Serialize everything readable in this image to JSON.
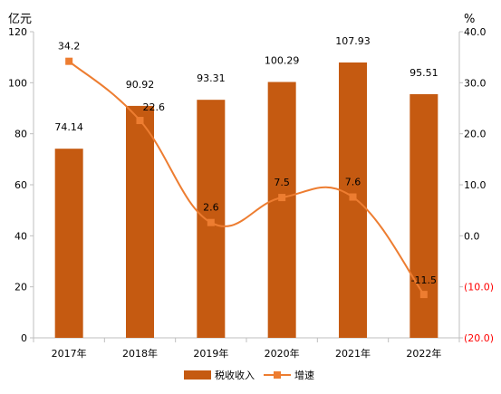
{
  "chart_data": {
    "type": "bar+line",
    "categories": [
      "2017年",
      "2018年",
      "2019年",
      "2020年",
      "2021年",
      "2022年"
    ],
    "series": [
      {
        "name": "税收收入",
        "type": "bar",
        "axis": "left",
        "color": "#C55A11",
        "values": [
          74.14,
          90.92,
          93.31,
          100.29,
          107.93,
          95.51
        ],
        "labels": [
          "74.14",
          "90.92",
          "93.31",
          "100.29",
          "107.93",
          "95.51"
        ]
      },
      {
        "name": "增速",
        "type": "line",
        "smooth": true,
        "axis": "right",
        "color": "#ED7D31",
        "marker": "square",
        "values": [
          34.2,
          22.6,
          2.6,
          7.5,
          7.6,
          -11.5
        ],
        "labels": [
          "34.2",
          "22.6",
          "2.6",
          "7.5",
          "7.6",
          "-11.5"
        ]
      }
    ],
    "y_left": {
      "unit_label": "亿元",
      "ylim": [
        0,
        120
      ],
      "ticks": [
        0,
        20,
        40,
        60,
        80,
        100,
        120
      ],
      "tick_labels": [
        "0",
        "20",
        "40",
        "60",
        "80",
        "100",
        "120"
      ]
    },
    "y_right": {
      "unit_label": "%",
      "ylim": [
        -20,
        40
      ],
      "ticks": [
        40,
        30,
        20,
        10,
        0,
        -10,
        -20
      ],
      "tick_labels": [
        "40.0",
        "30.0",
        "20.0",
        "10.0",
        "0.0",
        "(10.0)",
        "(20.0)"
      ],
      "negative_color": "#FF0000"
    },
    "grid": false,
    "legend_position": "bottom"
  }
}
